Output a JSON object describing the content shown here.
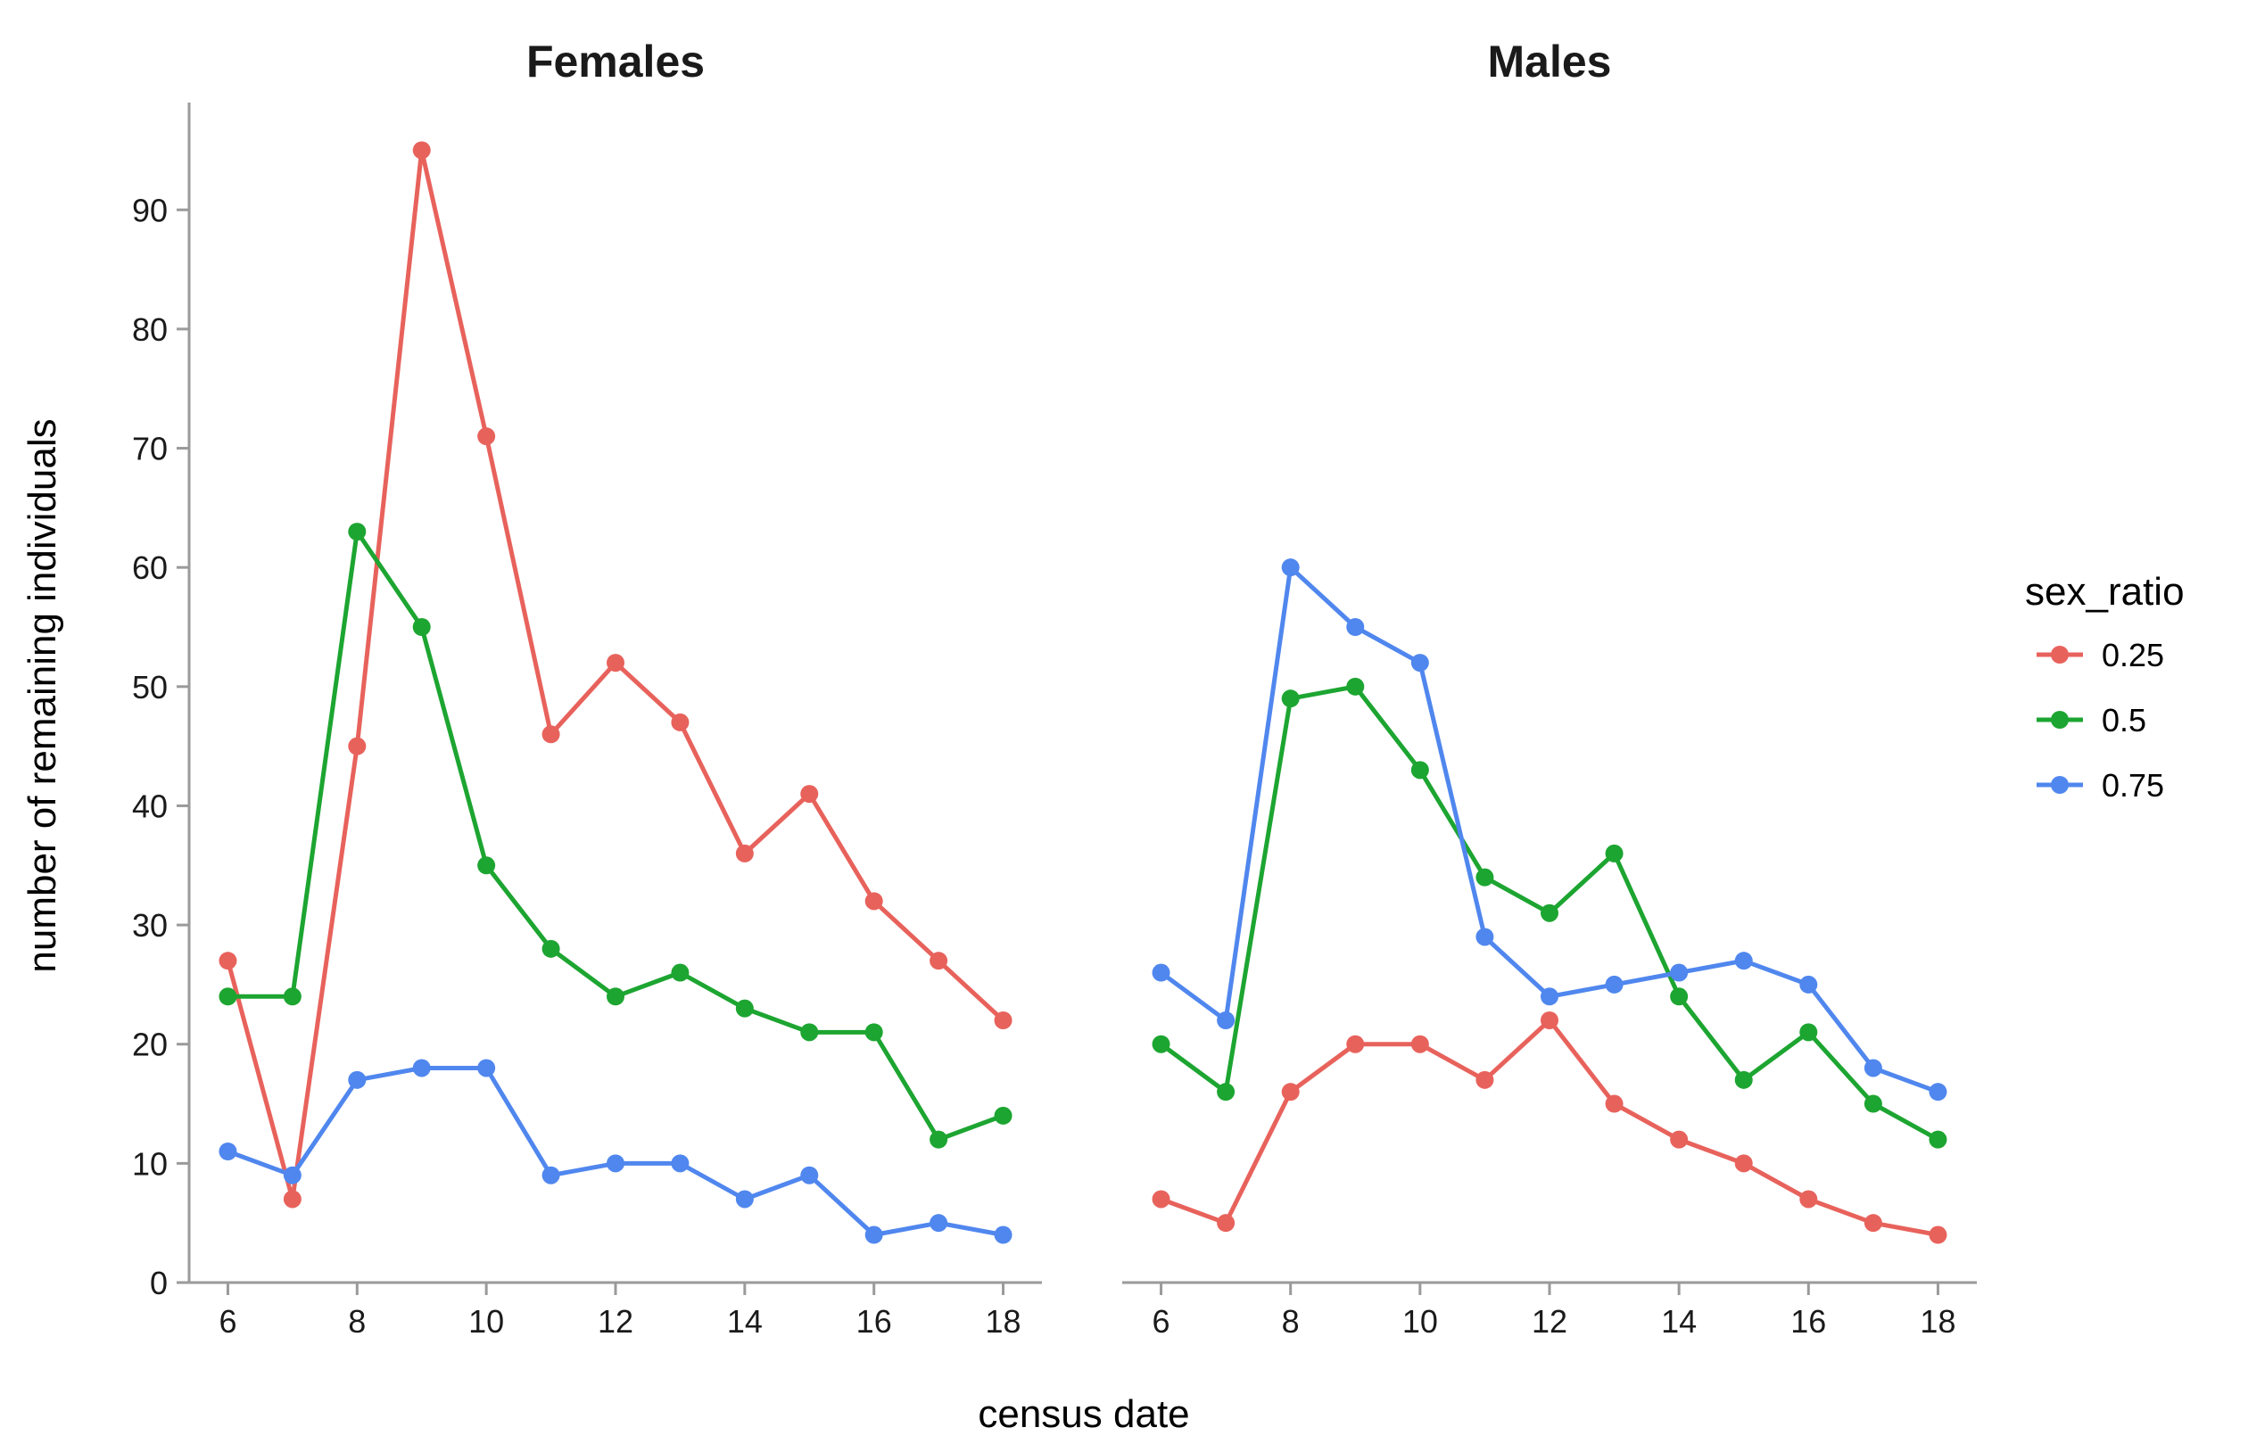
{
  "chart_data": {
    "type": "line",
    "xlabel": "census date",
    "ylabel": "number of remaining individuals",
    "legend": {
      "title": "sex_ratio",
      "placement": "right",
      "entries": [
        "0.25",
        "0.5",
        "0.75"
      ]
    },
    "x_ticks": [
      6,
      8,
      10,
      12,
      14,
      16,
      18
    ],
    "y_ticks": [
      0,
      10,
      20,
      30,
      40,
      50,
      60,
      70,
      80,
      90
    ],
    "xlim": [
      5.4,
      18.6
    ],
    "ylim": [
      0,
      99
    ],
    "x": [
      6,
      7,
      8,
      9,
      10,
      11,
      12,
      13,
      14,
      15,
      16,
      17,
      18
    ],
    "grid": false,
    "panels": [
      {
        "title": "Females",
        "series": [
          {
            "name": "0.25",
            "color": "#E8625C",
            "values": [
              27,
              7,
              45,
              95,
              71,
              46,
              52,
              47,
              36,
              41,
              32,
              27,
              22
            ]
          },
          {
            "name": "0.5",
            "color": "#1DA531",
            "values": [
              24,
              24,
              63,
              55,
              35,
              28,
              24,
              26,
              23,
              21,
              21,
              12,
              14
            ]
          },
          {
            "name": "0.75",
            "color": "#5087EE",
            "values": [
              11,
              9,
              17,
              18,
              18,
              9,
              10,
              10,
              7,
              9,
              4,
              5,
              4
            ]
          }
        ]
      },
      {
        "title": "Males",
        "series": [
          {
            "name": "0.25",
            "color": "#E8625C",
            "values": [
              7,
              5,
              16,
              20,
              20,
              17,
              22,
              15,
              12,
              10,
              7,
              5,
              4
            ]
          },
          {
            "name": "0.5",
            "color": "#1DA531",
            "values": [
              20,
              16,
              49,
              50,
              43,
              34,
              31,
              36,
              24,
              17,
              21,
              15,
              12
            ]
          },
          {
            "name": "0.75",
            "color": "#5087EE",
            "values": [
              26,
              22,
              60,
              55,
              52,
              29,
              24,
              25,
              26,
              27,
              25,
              18,
              16
            ]
          }
        ]
      }
    ]
  }
}
